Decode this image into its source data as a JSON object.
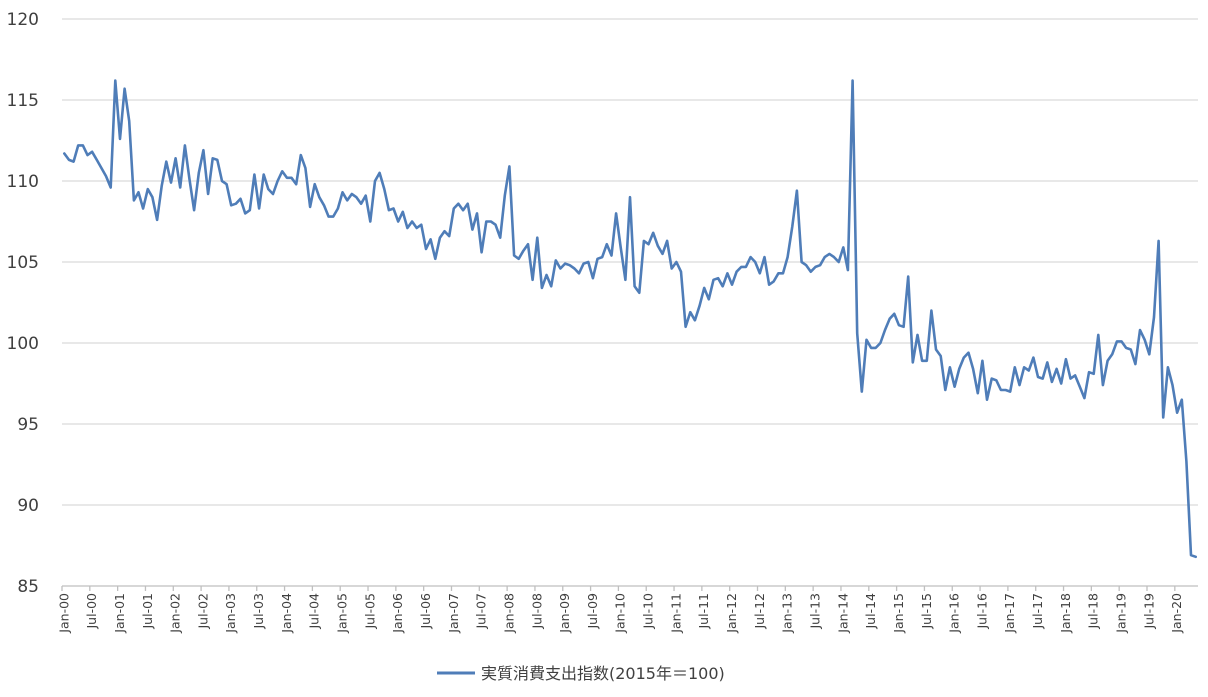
{
  "chart_data": {
    "type": "line",
    "title": "",
    "xlabel": "",
    "ylabel": "",
    "ylim": [
      85,
      120
    ],
    "y_ticks": [
      85,
      90,
      95,
      100,
      105,
      110,
      115,
      120
    ],
    "grid": true,
    "legend_position": "bottom",
    "x_start": "2000-01",
    "x_tick_labels": [
      "Jan-00",
      "Jul-00",
      "Jan-01",
      "Jul-01",
      "Jan-02",
      "Jul-02",
      "Jan-03",
      "Jul-03",
      "Jan-04",
      "Jul-04",
      "Jan-05",
      "Jul-05",
      "Jan-06",
      "Jul-06",
      "Jan-07",
      "Jul-07",
      "Jan-08",
      "Jul-08",
      "Jan-09",
      "Jul-09",
      "Jan-10",
      "Jul-10",
      "Jan-11",
      "Jul-11",
      "Jan-12",
      "Jul-12",
      "Jan-13",
      "Jul-13",
      "Jan-14",
      "Jul-14",
      "Jan-15",
      "Jul-15",
      "Jan-16",
      "Jul-16",
      "Jan-17",
      "Jul-17",
      "Jan-18",
      "Jul-18",
      "Jan-19",
      "Jul-19",
      "Jan-20"
    ],
    "series": [
      {
        "name": "実質消費支出指数(2015年＝100)",
        "color": "#4f7db8",
        "values": [
          111.7,
          111.3,
          111.2,
          112.2,
          112.2,
          111.6,
          111.8,
          111.3,
          110.8,
          110.3,
          109.6,
          116.2,
          112.6,
          115.7,
          113.7,
          108.8,
          109.3,
          108.3,
          109.5,
          109.0,
          107.6,
          109.7,
          111.2,
          109.9,
          111.4,
          109.6,
          112.2,
          110.1,
          108.2,
          110.5,
          111.9,
          109.2,
          111.4,
          111.3,
          110.0,
          109.8,
          108.5,
          108.6,
          108.9,
          108.0,
          108.2,
          110.4,
          108.3,
          110.4,
          109.5,
          109.2,
          110.0,
          110.6,
          110.2,
          110.2,
          109.8,
          111.6,
          110.8,
          108.4,
          109.8,
          109.0,
          108.5,
          107.8,
          107.8,
          108.3,
          109.3,
          108.8,
          109.2,
          109.0,
          108.6,
          109.1,
          107.5,
          110.0,
          110.5,
          109.5,
          108.2,
          108.3,
          107.5,
          108.1,
          107.1,
          107.5,
          107.1,
          107.3,
          105.8,
          106.4,
          105.2,
          106.5,
          106.9,
          106.6,
          108.3,
          108.6,
          108.2,
          108.6,
          107.0,
          108.0,
          105.6,
          107.5,
          107.5,
          107.3,
          106.5,
          109.1,
          110.9,
          105.4,
          105.2,
          105.7,
          106.1,
          103.9,
          106.5,
          103.4,
          104.2,
          103.5,
          105.1,
          104.6,
          104.9,
          104.8,
          104.6,
          104.3,
          104.9,
          105.0,
          104.0,
          105.2,
          105.3,
          106.1,
          105.4,
          108.0,
          105.9,
          103.9,
          109.0,
          103.5,
          103.1,
          106.3,
          106.1,
          106.8,
          106.0,
          105.5,
          106.3,
          104.6,
          105.0,
          104.4,
          101.0,
          101.9,
          101.4,
          102.3,
          103.4,
          102.7,
          103.9,
          104.0,
          103.5,
          104.3,
          103.6,
          104.4,
          104.7,
          104.7,
          105.3,
          105.0,
          104.3,
          105.3,
          103.6,
          103.8,
          104.3,
          104.3,
          105.3,
          107.2,
          109.4,
          105.0,
          104.8,
          104.4,
          104.7,
          104.8,
          105.3,
          105.5,
          105.3,
          105.0,
          105.9,
          104.5,
          116.2,
          100.6,
          97.0,
          100.2,
          99.7,
          99.7,
          100.0,
          100.8,
          101.5,
          101.8,
          101.1,
          101.0,
          104.1,
          98.8,
          100.5,
          98.9,
          98.9,
          102.0,
          99.6,
          99.2,
          97.1,
          98.5,
          97.3,
          98.4,
          99.1,
          99.4,
          98.4,
          96.9,
          98.9,
          96.5,
          97.8,
          97.7,
          97.1,
          97.1,
          97.0,
          98.5,
          97.4,
          98.5,
          98.3,
          99.1,
          97.9,
          97.8,
          98.8,
          97.6,
          98.4,
          97.5,
          99.0,
          97.8,
          98.0,
          97.3,
          96.6,
          98.2,
          98.1,
          100.5,
          97.4,
          98.9,
          99.3,
          100.1,
          100.1,
          99.7,
          99.6,
          98.7,
          100.8,
          100.2,
          99.3,
          101.6,
          106.3,
          95.4,
          98.5,
          97.4,
          95.7,
          96.5,
          92.7,
          86.9,
          86.8
        ]
      }
    ]
  }
}
